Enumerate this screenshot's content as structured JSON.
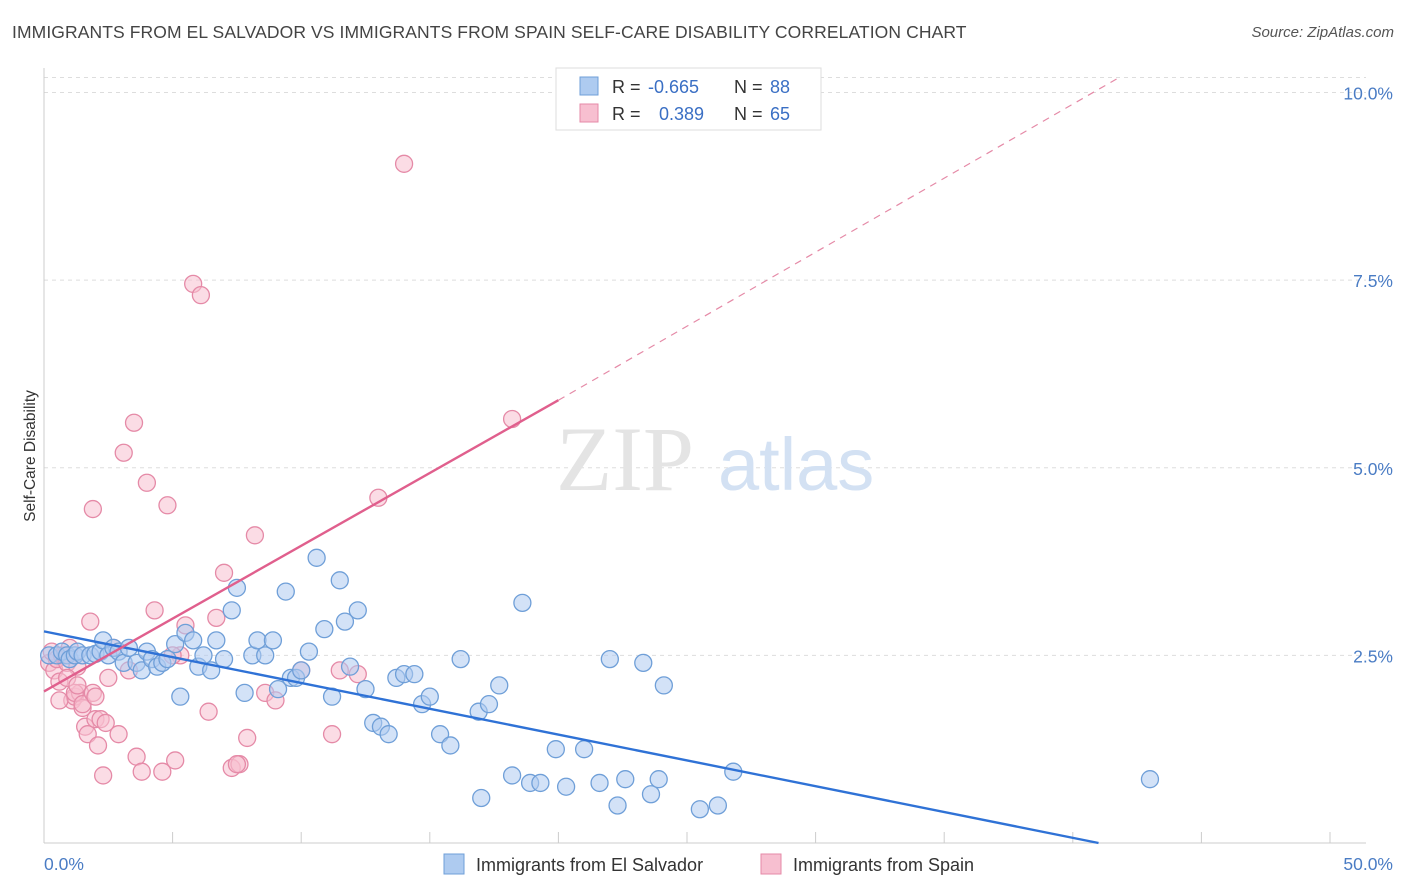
{
  "header": {
    "title": "IMMIGRANTS FROM EL SALVADOR VS IMMIGRANTS FROM SPAIN SELF-CARE DISABILITY CORRELATION CHART",
    "source": "Source: ZipAtlas.com"
  },
  "watermark": {
    "part1": "ZIP",
    "part2": "atlas"
  },
  "legend": {
    "r_label": "R =",
    "n_label": "N =",
    "rows": [
      {
        "r": "-0.665",
        "n": "88",
        "color": "#aecbf0",
        "stroke": "#6f9fd8"
      },
      {
        "r": "0.389",
        "n": "65",
        "color": "#f7bfd0",
        "stroke": "#e58aa7"
      }
    ]
  },
  "chart_data": {
    "type": "scatter",
    "ylabel": "Self-Care Disability",
    "xlim": [
      0,
      50
    ],
    "ylim": [
      0,
      10.5
    ],
    "y_ticks": [
      {
        "value": 2.5,
        "label": "2.5%"
      },
      {
        "value": 5.0,
        "label": "5.0%"
      },
      {
        "value": 7.5,
        "label": "7.5%"
      },
      {
        "value": 10.0,
        "label": "10.0%"
      }
    ],
    "x_tick_labels": [
      {
        "value": 0,
        "label": "0.0%"
      },
      {
        "value": 50,
        "label": "50.0%"
      }
    ],
    "grid": true,
    "series": [
      {
        "name": "Immigrants from El Salvador",
        "color": "#aecbf0",
        "stroke": "#6f9fd8",
        "line_color": "#2f72d6",
        "trend": {
          "x0": 0,
          "y0": 2.82,
          "x1": 41.0,
          "y1": 0.0,
          "style": "solid"
        },
        "points": [
          [
            0.2,
            2.5
          ],
          [
            0.5,
            2.5
          ],
          [
            0.7,
            2.55
          ],
          [
            0.9,
            2.5
          ],
          [
            1.0,
            2.45
          ],
          [
            1.2,
            2.5
          ],
          [
            1.3,
            2.55
          ],
          [
            1.5,
            2.5
          ],
          [
            1.8,
            2.5
          ],
          [
            2.0,
            2.52
          ],
          [
            2.2,
            2.55
          ],
          [
            2.3,
            2.7
          ],
          [
            2.5,
            2.5
          ],
          [
            2.7,
            2.6
          ],
          [
            2.9,
            2.55
          ],
          [
            3.1,
            2.4
          ],
          [
            3.3,
            2.6
          ],
          [
            3.6,
            2.4
          ],
          [
            3.8,
            2.3
          ],
          [
            4.0,
            2.55
          ],
          [
            4.2,
            2.45
          ],
          [
            4.4,
            2.35
          ],
          [
            4.6,
            2.4
          ],
          [
            4.8,
            2.45
          ],
          [
            5.1,
            2.65
          ],
          [
            5.3,
            1.95
          ],
          [
            5.5,
            2.8
          ],
          [
            5.8,
            2.7
          ],
          [
            6.0,
            2.35
          ],
          [
            6.2,
            2.5
          ],
          [
            6.5,
            2.3
          ],
          [
            6.7,
            2.7
          ],
          [
            7.0,
            2.45
          ],
          [
            7.3,
            3.1
          ],
          [
            7.5,
            3.4
          ],
          [
            7.8,
            2.0
          ],
          [
            8.1,
            2.5
          ],
          [
            8.3,
            2.7
          ],
          [
            8.6,
            2.5
          ],
          [
            8.9,
            2.7
          ],
          [
            9.1,
            2.05
          ],
          [
            9.4,
            3.35
          ],
          [
            9.6,
            2.2
          ],
          [
            9.8,
            2.2
          ],
          [
            10.0,
            2.3
          ],
          [
            10.3,
            2.55
          ],
          [
            10.6,
            3.8
          ],
          [
            10.9,
            2.85
          ],
          [
            11.2,
            1.95
          ],
          [
            11.5,
            3.5
          ],
          [
            11.7,
            2.95
          ],
          [
            11.9,
            2.35
          ],
          [
            12.2,
            3.1
          ],
          [
            12.5,
            2.05
          ],
          [
            12.8,
            1.6
          ],
          [
            13.1,
            1.55
          ],
          [
            13.4,
            1.45
          ],
          [
            13.7,
            2.2
          ],
          [
            14.0,
            2.25
          ],
          [
            14.4,
            2.25
          ],
          [
            14.7,
            1.85
          ],
          [
            15.0,
            1.95
          ],
          [
            15.4,
            1.45
          ],
          [
            15.8,
            1.3
          ],
          [
            16.2,
            2.45
          ],
          [
            16.9,
            1.75
          ],
          [
            17.3,
            1.85
          ],
          [
            17.7,
            2.1
          ],
          [
            18.2,
            0.9
          ],
          [
            17.0,
            0.6
          ],
          [
            18.6,
            3.2
          ],
          [
            18.9,
            0.8
          ],
          [
            19.3,
            0.8
          ],
          [
            19.9,
            1.25
          ],
          [
            20.3,
            0.75
          ],
          [
            21.0,
            1.25
          ],
          [
            21.6,
            0.8
          ],
          [
            22.3,
            0.5
          ],
          [
            22.6,
            0.85
          ],
          [
            24.1,
            2.1
          ],
          [
            22.0,
            2.45
          ],
          [
            23.3,
            2.4
          ],
          [
            23.6,
            0.65
          ],
          [
            23.9,
            0.85
          ],
          [
            25.5,
            0.45
          ],
          [
            26.8,
            0.95
          ],
          [
            26.2,
            0.5
          ],
          [
            43.0,
            0.85
          ]
        ]
      },
      {
        "name": "Immigrants from Spain",
        "color": "#f7bfd0",
        "stroke": "#e58aa7",
        "line_color": "#e05f8d",
        "trend": {
          "x0": 0,
          "y0": 2.02,
          "x1": 20.0,
          "y1": 5.9,
          "style": "solid"
        },
        "trend_ext": {
          "x0": 20.0,
          "y0": 5.9,
          "x1": 41.8,
          "y1": 10.2,
          "style": "dashed"
        },
        "points": [
          [
            0.2,
            2.4
          ],
          [
            0.3,
            2.55
          ],
          [
            0.4,
            2.3
          ],
          [
            0.5,
            2.45
          ],
          [
            0.6,
            2.15
          ],
          [
            0.7,
            2.5
          ],
          [
            0.8,
            2.5
          ],
          [
            0.9,
            2.4
          ],
          [
            1.0,
            2.6
          ],
          [
            1.1,
            1.9
          ],
          [
            1.2,
            1.95
          ],
          [
            1.3,
            2.35
          ],
          [
            1.4,
            2.0
          ],
          [
            1.5,
            1.8
          ],
          [
            1.6,
            1.55
          ],
          [
            1.7,
            1.45
          ],
          [
            1.8,
            2.95
          ],
          [
            1.9,
            4.45
          ],
          [
            2.0,
            1.65
          ],
          [
            2.1,
            1.3
          ],
          [
            2.3,
            0.9
          ],
          [
            2.5,
            2.2
          ],
          [
            2.7,
            2.6
          ],
          [
            2.9,
            1.45
          ],
          [
            3.1,
            5.2
          ],
          [
            3.3,
            2.3
          ],
          [
            3.5,
            5.6
          ],
          [
            3.6,
            1.15
          ],
          [
            3.8,
            0.95
          ],
          [
            4.0,
            4.8
          ],
          [
            4.3,
            3.1
          ],
          [
            4.6,
            0.95
          ],
          [
            4.8,
            4.5
          ],
          [
            5.1,
            1.1
          ],
          [
            5.3,
            2.5
          ],
          [
            5.5,
            2.9
          ],
          [
            5.8,
            7.45
          ],
          [
            6.1,
            7.3
          ],
          [
            6.4,
            1.75
          ],
          [
            6.7,
            3.0
          ],
          [
            7.0,
            3.6
          ],
          [
            7.3,
            1.0
          ],
          [
            7.6,
            1.05
          ],
          [
            7.9,
            1.4
          ],
          [
            8.2,
            4.1
          ],
          [
            8.6,
            2.0
          ],
          [
            9.0,
            1.9
          ],
          [
            10.0,
            2.3
          ],
          [
            11.2,
            1.45
          ],
          [
            11.5,
            2.3
          ],
          [
            12.2,
            2.25
          ],
          [
            13.0,
            4.6
          ],
          [
            14.0,
            9.05
          ],
          [
            18.2,
            5.65
          ],
          [
            1.2,
            2.0
          ],
          [
            1.5,
            1.85
          ],
          [
            1.9,
            2.0
          ],
          [
            2.2,
            1.65
          ],
          [
            2.4,
            1.6
          ],
          [
            2.0,
            1.95
          ],
          [
            0.6,
            1.9
          ],
          [
            0.9,
            2.2
          ],
          [
            1.3,
            2.1
          ],
          [
            7.5,
            1.05
          ],
          [
            5.0,
            2.5
          ]
        ]
      }
    ]
  }
}
